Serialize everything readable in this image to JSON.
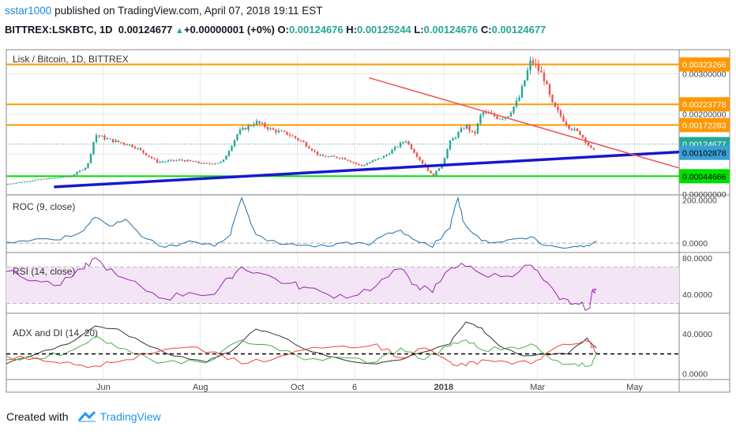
{
  "header": {
    "user": "sstar1000",
    "published": "published on TradingView.com, April 07, 2018 19:11 EST",
    "symbol": "BITTREX:LSKBTC, 1D",
    "price": "0.00124677",
    "change": "+0.00000001 (+0%)",
    "o_label": "O:",
    "o_value": "0.00124676",
    "h_label": "H:",
    "h_value": "0.00125244",
    "l_label": "L:",
    "l_value": "0.00124676",
    "c_label": "C:",
    "c_value": "0.00124677"
  },
  "footer": {
    "created_with": "Created with",
    "brand": "TradingView"
  },
  "colors": {
    "up": "#26a69a",
    "down": "#ef5350",
    "orange": "#ff9800",
    "green": "#00e000",
    "blue": "#1717d1",
    "trend_red": "#ef5350",
    "rsi_fill": "#f3e5f5",
    "rsi_line": "#9c27b0",
    "roc_line": "#1f6fab",
    "adx_black": "#333333",
    "adx_green": "#4caf50",
    "adx_red": "#f44336",
    "grid": "#e8e8e8",
    "border": "#8a8a8a",
    "cur_price": "#26a69a",
    "blue_label": "#3a9fd6"
  },
  "chart_data": [
    {
      "type": "candlestick",
      "title": "Lisk / Bitcoin, 1D, BITTREX",
      "x_tick_labels": [
        "Jun",
        "Aug",
        "Oct",
        "6",
        "2018",
        "Mar",
        "May"
      ],
      "y_tick_labels": [
        "0.00300000",
        "0.00200000",
        "0.00100000",
        "0.00000000"
      ],
      "ylim": [
        0.0,
        0.0036
      ],
      "close_path": [
        [
          "2017-04-01",
          0.00025
        ],
        [
          "2017-04-25",
          0.00038
        ],
        [
          "2017-05-12",
          0.00045
        ],
        [
          "2017-05-22",
          0.0007
        ],
        [
          "2017-05-27",
          0.00148
        ],
        [
          "2017-06-05",
          0.00135
        ],
        [
          "2017-06-20",
          0.0012
        ],
        [
          "2017-07-05",
          0.0008
        ],
        [
          "2017-07-20",
          0.00085
        ],
        [
          "2017-08-05",
          0.00075
        ],
        [
          "2017-08-15",
          0.0008
        ],
        [
          "2017-08-25",
          0.00155
        ],
        [
          "2017-09-05",
          0.0018
        ],
        [
          "2017-09-15",
          0.0016
        ],
        [
          "2017-09-25",
          0.0015
        ],
        [
          "2017-10-05",
          0.00128
        ],
        [
          "2017-10-15",
          0.00095
        ],
        [
          "2017-10-30",
          0.0009
        ],
        [
          "2017-11-10",
          0.0007
        ],
        [
          "2017-11-25",
          0.00095
        ],
        [
          "2017-12-08",
          0.00135
        ],
        [
          "2017-12-18",
          0.0008
        ],
        [
          "2017-12-25",
          0.00045
        ],
        [
          "2017-12-31",
          0.00075
        ],
        [
          "2018-01-05",
          0.0013
        ],
        [
          "2018-01-15",
          0.00172
        ],
        [
          "2018-01-20",
          0.00145
        ],
        [
          "2018-01-25",
          0.00205
        ],
        [
          "2018-02-05",
          0.0019
        ],
        [
          "2018-02-10",
          0.00195
        ],
        [
          "2018-02-17",
          0.00235
        ],
        [
          "2018-02-25",
          0.00335
        ],
        [
          "2018-03-05",
          0.0029
        ],
        [
          "2018-03-10",
          0.00225
        ],
        [
          "2018-03-20",
          0.0017
        ],
        [
          "2018-03-28",
          0.0015
        ],
        [
          "2018-04-05",
          0.00105
        ],
        [
          "2018-04-07",
          0.00125
        ]
      ],
      "horizontal_levels": [
        {
          "value": 0.00323266,
          "color": "orange",
          "label": "0.00323266"
        },
        {
          "value": 0.00223778,
          "color": "orange",
          "label": "0.00223778"
        },
        {
          "value": 0.00172283,
          "color": "orange",
          "label": "0.00172283"
        },
        {
          "value": 0.00044666,
          "color": "green",
          "label": "0.00044666"
        }
      ],
      "current_price_label": "0.00124677",
      "blue_line_label": "0.00102878",
      "trendlines": [
        {
          "name": "support",
          "from": [
            "2017-05-01",
            0.00018
          ],
          "to": [
            "2018-05-29",
            0.00105
          ]
        },
        {
          "name": "resistance",
          "from": [
            "2017-11-15",
            0.0029
          ],
          "to": [
            "2018-05-29",
            0.00065
          ]
        }
      ]
    },
    {
      "type": "line",
      "title": "ROC (9, close)",
      "y_tick_labels": [
        "200.0000",
        "0.0000"
      ],
      "ylim": [
        -40,
        220
      ],
      "baseline": 0,
      "series_path": [
        [
          "2017-04-01",
          5
        ],
        [
          "2017-04-20",
          20
        ],
        [
          "2017-05-05",
          15
        ],
        [
          "2017-05-20",
          60
        ],
        [
          "2017-05-27",
          120
        ],
        [
          "2017-06-05",
          80
        ],
        [
          "2017-06-15",
          110
        ],
        [
          "2017-06-25",
          30
        ],
        [
          "2017-07-10",
          -20
        ],
        [
          "2017-07-25",
          10
        ],
        [
          "2017-08-10",
          -15
        ],
        [
          "2017-08-20",
          40
        ],
        [
          "2017-08-27",
          210
        ],
        [
          "2017-09-05",
          40
        ],
        [
          "2017-09-20",
          -5
        ],
        [
          "2017-10-05",
          -10
        ],
        [
          "2017-10-20",
          -15
        ],
        [
          "2017-11-01",
          5
        ],
        [
          "2017-11-15",
          -10
        ],
        [
          "2017-11-25",
          40
        ],
        [
          "2017-12-05",
          60
        ],
        [
          "2017-12-15",
          10
        ],
        [
          "2017-12-25",
          -20
        ],
        [
          "2018-01-05",
          70
        ],
        [
          "2018-01-10",
          210
        ],
        [
          "2018-01-15",
          80
        ],
        [
          "2018-01-25",
          10
        ],
        [
          "2018-02-05",
          5
        ],
        [
          "2018-02-15",
          20
        ],
        [
          "2018-02-25",
          30
        ],
        [
          "2018-03-05",
          -10
        ],
        [
          "2018-03-15",
          -20
        ],
        [
          "2018-03-25",
          -15
        ],
        [
          "2018-04-01",
          -10
        ],
        [
          "2018-04-07",
          10
        ]
      ]
    },
    {
      "type": "line",
      "title": "RSI (14, close)",
      "y_tick_labels": [
        "80.0000",
        "40.0000"
      ],
      "ylim": [
        20,
        85
      ],
      "band": [
        30,
        70
      ],
      "series_path": [
        [
          "2017-04-01",
          65
        ],
        [
          "2017-04-20",
          55
        ],
        [
          "2017-05-05",
          50
        ],
        [
          "2017-05-20",
          68
        ],
        [
          "2017-05-27",
          80
        ],
        [
          "2017-06-10",
          60
        ],
        [
          "2017-06-25",
          48
        ],
        [
          "2017-07-10",
          35
        ],
        [
          "2017-07-25",
          42
        ],
        [
          "2017-08-10",
          40
        ],
        [
          "2017-08-20",
          58
        ],
        [
          "2017-08-27",
          70
        ],
        [
          "2017-09-10",
          62
        ],
        [
          "2017-09-25",
          52
        ],
        [
          "2017-10-05",
          48
        ],
        [
          "2017-10-20",
          40
        ],
        [
          "2017-11-05",
          38
        ],
        [
          "2017-11-20",
          50
        ],
        [
          "2017-12-05",
          68
        ],
        [
          "2017-12-15",
          50
        ],
        [
          "2017-12-25",
          42
        ],
        [
          "2018-01-05",
          68
        ],
        [
          "2018-01-12",
          74
        ],
        [
          "2018-01-25",
          62
        ],
        [
          "2018-02-10",
          60
        ],
        [
          "2018-02-25",
          72
        ],
        [
          "2018-03-05",
          55
        ],
        [
          "2018-03-15",
          34
        ],
        [
          "2018-03-25",
          30
        ],
        [
          "2018-04-03",
          25
        ],
        [
          "2018-04-05",
          46
        ],
        [
          "2018-04-07",
          45
        ]
      ]
    },
    {
      "type": "line",
      "title": "ADX and DI (14, 20)",
      "y_tick_labels": [
        "40.0000",
        "0.0000"
      ],
      "ylim": [
        -5,
        60
      ],
      "threshold": 20,
      "series": [
        {
          "name": "ADX",
          "color": "adx_black",
          "values_path": [
            [
              "2017-04-01",
              10
            ],
            [
              "2017-04-20",
              20
            ],
            [
              "2017-05-10",
              30
            ],
            [
              "2017-05-27",
              48
            ],
            [
              "2017-06-10",
              45
            ],
            [
              "2017-06-25",
              32
            ],
            [
              "2017-07-15",
              18
            ],
            [
              "2017-08-05",
              12
            ],
            [
              "2017-08-20",
              22
            ],
            [
              "2017-09-05",
              45
            ],
            [
              "2017-09-20",
              38
            ],
            [
              "2017-10-10",
              22
            ],
            [
              "2017-10-30",
              14
            ],
            [
              "2017-11-20",
              10
            ],
            [
              "2017-12-05",
              14
            ],
            [
              "2017-12-20",
              22
            ],
            [
              "2018-01-05",
              30
            ],
            [
              "2018-01-15",
              52
            ],
            [
              "2018-01-25",
              46
            ],
            [
              "2018-02-05",
              28
            ],
            [
              "2018-02-20",
              18
            ],
            [
              "2018-03-05",
              20
            ],
            [
              "2018-03-20",
              20
            ],
            [
              "2018-04-01",
              36
            ],
            [
              "2018-04-07",
              26
            ]
          ]
        },
        {
          "name": "+DI",
          "color": "adx_green",
          "values_path": [
            [
              "2017-04-01",
              18
            ],
            [
              "2017-04-20",
              15
            ],
            [
              "2017-05-10",
              22
            ],
            [
              "2017-05-27",
              38
            ],
            [
              "2017-06-10",
              26
            ],
            [
              "2017-07-01",
              14
            ],
            [
              "2017-07-20",
              10
            ],
            [
              "2017-08-10",
              15
            ],
            [
              "2017-08-27",
              34
            ],
            [
              "2017-09-15",
              28
            ],
            [
              "2017-10-05",
              14
            ],
            [
              "2017-10-30",
              16
            ],
            [
              "2017-11-20",
              12
            ],
            [
              "2017-12-05",
              26
            ],
            [
              "2017-12-20",
              14
            ],
            [
              "2018-01-05",
              28
            ],
            [
              "2018-01-15",
              34
            ],
            [
              "2018-01-25",
              24
            ],
            [
              "2018-02-10",
              26
            ],
            [
              "2018-02-25",
              30
            ],
            [
              "2018-03-10",
              14
            ],
            [
              "2018-03-25",
              10
            ],
            [
              "2018-04-03",
              8
            ],
            [
              "2018-04-07",
              22
            ]
          ]
        },
        {
          "name": "-DI",
          "color": "adx_red",
          "values_path": [
            [
              "2017-04-01",
              14
            ],
            [
              "2017-04-20",
              16
            ],
            [
              "2017-05-10",
              12
            ],
            [
              "2017-05-27",
              8
            ],
            [
              "2017-06-10",
              12
            ],
            [
              "2017-07-01",
              20
            ],
            [
              "2017-07-20",
              26
            ],
            [
              "2017-08-10",
              22
            ],
            [
              "2017-08-27",
              10
            ],
            [
              "2017-09-15",
              14
            ],
            [
              "2017-10-05",
              24
            ],
            [
              "2017-10-30",
              28
            ],
            [
              "2017-11-20",
              30
            ],
            [
              "2017-12-05",
              16
            ],
            [
              "2017-12-20",
              26
            ],
            [
              "2018-01-05",
              12
            ],
            [
              "2018-01-15",
              8
            ],
            [
              "2018-01-25",
              14
            ],
            [
              "2018-02-10",
              12
            ],
            [
              "2018-02-25",
              10
            ],
            [
              "2018-03-10",
              24
            ],
            [
              "2018-03-25",
              30
            ],
            [
              "2018-04-03",
              32
            ],
            [
              "2018-04-07",
              20
            ]
          ]
        }
      ]
    }
  ]
}
